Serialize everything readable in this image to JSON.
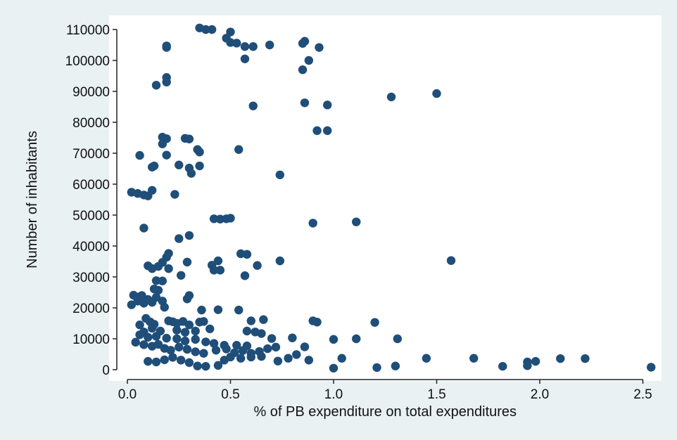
{
  "chart_data": {
    "type": "scatter",
    "title": "",
    "xlabel": "% of PB expenditure on total expenditures",
    "ylabel": "Number of inhabitants",
    "xlim": [
      0.0,
      2.6
    ],
    "ylim": [
      0,
      112000
    ],
    "x_ticks": [
      0.0,
      0.5,
      1.0,
      1.5,
      2.0,
      2.5
    ],
    "x_tick_labels": [
      "0.0",
      "0.5",
      "1.0",
      "1.5",
      "2.0",
      "2.5"
    ],
    "y_ticks": [
      0,
      10000,
      20000,
      30000,
      40000,
      50000,
      60000,
      70000,
      80000,
      90000,
      100000,
      110000
    ],
    "y_tick_labels": [
      "0",
      "10000",
      "20000",
      "30000",
      "40000",
      "50000",
      "60000",
      "70000",
      "80000",
      "90000",
      "100000",
      "110000"
    ],
    "grid": false,
    "legend": "none",
    "colors": {
      "background": "#eaf1f3",
      "plot_area": "#ffffff",
      "marker": "#1f4e79",
      "axis": "#222222"
    },
    "points": [
      [
        0.35,
        110500
      ],
      [
        0.38,
        110000
      ],
      [
        0.41,
        110000
      ],
      [
        0.5,
        109200
      ],
      [
        0.48,
        107200
      ],
      [
        0.5,
        105800
      ],
      [
        0.53,
        105600
      ],
      [
        0.57,
        104500
      ],
      [
        0.61,
        104500
      ],
      [
        0.69,
        105000
      ],
      [
        0.85,
        105500
      ],
      [
        0.86,
        106200
      ],
      [
        0.93,
        104200
      ],
      [
        0.88,
        100000
      ],
      [
        0.57,
        100500
      ],
      [
        0.19,
        104700
      ],
      [
        0.19,
        104200
      ],
      [
        0.85,
        97000
      ],
      [
        0.19,
        94500
      ],
      [
        0.19,
        93000
      ],
      [
        0.14,
        92000
      ],
      [
        1.28,
        88200
      ],
      [
        1.5,
        89300
      ],
      [
        0.86,
        86300
      ],
      [
        0.61,
        85300
      ],
      [
        0.97,
        85600
      ],
      [
        0.92,
        77300
      ],
      [
        0.97,
        77300
      ],
      [
        0.17,
        75200
      ],
      [
        0.19,
        74700
      ],
      [
        0.17,
        73000
      ],
      [
        0.28,
        74800
      ],
      [
        0.3,
        74600
      ],
      [
        0.34,
        71200
      ],
      [
        0.35,
        70400
      ],
      [
        0.54,
        71200
      ],
      [
        0.06,
        69300
      ],
      [
        0.19,
        69400
      ],
      [
        0.13,
        65900
      ],
      [
        0.12,
        65500
      ],
      [
        0.25,
        66200
      ],
      [
        0.3,
        65200
      ],
      [
        0.31,
        63500
      ],
      [
        0.35,
        65900
      ],
      [
        0.74,
        63000
      ],
      [
        0.02,
        57400
      ],
      [
        0.05,
        57000
      ],
      [
        0.08,
        56500
      ],
      [
        0.1,
        56200
      ],
      [
        0.12,
        58000
      ],
      [
        0.23,
        56700
      ],
      [
        0.42,
        48800
      ],
      [
        0.45,
        48700
      ],
      [
        0.48,
        48800
      ],
      [
        0.5,
        49000
      ],
      [
        0.9,
        47400
      ],
      [
        1.11,
        47800
      ],
      [
        0.08,
        45800
      ],
      [
        0.25,
        42400
      ],
      [
        0.3,
        43400
      ],
      [
        0.2,
        37600
      ],
      [
        0.19,
        36400
      ],
      [
        0.17,
        34700
      ],
      [
        0.1,
        33600
      ],
      [
        0.12,
        32700
      ],
      [
        0.15,
        33400
      ],
      [
        0.2,
        32700
      ],
      [
        0.29,
        34800
      ],
      [
        0.41,
        33800
      ],
      [
        0.44,
        35200
      ],
      [
        0.42,
        32200
      ],
      [
        0.45,
        32200
      ],
      [
        0.55,
        37500
      ],
      [
        0.58,
        37300
      ],
      [
        0.63,
        33700
      ],
      [
        0.57,
        30400
      ],
      [
        0.74,
        35200
      ],
      [
        1.57,
        35300
      ],
      [
        0.14,
        28800
      ],
      [
        0.17,
        28700
      ],
      [
        0.26,
        30500
      ],
      [
        0.13,
        26100
      ],
      [
        0.15,
        25700
      ],
      [
        0.03,
        24100
      ],
      [
        0.05,
        23500
      ],
      [
        0.07,
        24000
      ],
      [
        0.02,
        21000
      ],
      [
        0.05,
        22200
      ],
      [
        0.08,
        21500
      ],
      [
        0.1,
        22700
      ],
      [
        0.12,
        21800
      ],
      [
        0.14,
        23400
      ],
      [
        0.17,
        22200
      ],
      [
        0.18,
        20200
      ],
      [
        0.3,
        24000
      ],
      [
        0.29,
        22900
      ],
      [
        0.36,
        19300
      ],
      [
        0.44,
        19400
      ],
      [
        0.54,
        19300
      ],
      [
        0.09,
        16600
      ],
      [
        0.11,
        15500
      ],
      [
        0.13,
        14700
      ],
      [
        0.06,
        14500
      ],
      [
        0.2,
        15800
      ],
      [
        0.22,
        15500
      ],
      [
        0.24,
        15000
      ],
      [
        0.27,
        15600
      ],
      [
        0.3,
        14500
      ],
      [
        0.35,
        15400
      ],
      [
        0.37,
        15600
      ],
      [
        0.4,
        13200
      ],
      [
        0.33,
        12500
      ],
      [
        0.28,
        12100
      ],
      [
        0.24,
        12800
      ],
      [
        0.16,
        12500
      ],
      [
        0.12,
        13400
      ],
      [
        0.08,
        12200
      ],
      [
        0.06,
        11300
      ],
      [
        0.1,
        10500
      ],
      [
        0.14,
        10800
      ],
      [
        0.19,
        10200
      ],
      [
        0.24,
        10000
      ],
      [
        0.28,
        9300
      ],
      [
        0.33,
        9800
      ],
      [
        0.38,
        9000
      ],
      [
        0.42,
        8500
      ],
      [
        0.47,
        7900
      ],
      [
        0.53,
        7900
      ],
      [
        0.58,
        7700
      ],
      [
        0.62,
        12200
      ],
      [
        0.65,
        11700
      ],
      [
        0.6,
        15800
      ],
      [
        0.66,
        16200
      ],
      [
        0.58,
        12500
      ],
      [
        0.04,
        8900
      ],
      [
        0.08,
        8100
      ],
      [
        0.12,
        7600
      ],
      [
        0.15,
        8200
      ],
      [
        0.18,
        6900
      ],
      [
        0.21,
        6300
      ],
      [
        0.25,
        7300
      ],
      [
        0.29,
        6600
      ],
      [
        0.33,
        5800
      ],
      [
        0.37,
        5300
      ],
      [
        0.43,
        6300
      ],
      [
        0.48,
        6700
      ],
      [
        0.52,
        5500
      ],
      [
        0.56,
        6200
      ],
      [
        0.6,
        5300
      ],
      [
        0.64,
        5900
      ],
      [
        0.68,
        6800
      ],
      [
        0.72,
        7300
      ],
      [
        0.7,
        10100
      ],
      [
        0.8,
        10300
      ],
      [
        0.86,
        7400
      ],
      [
        0.9,
        15800
      ],
      [
        0.92,
        15400
      ],
      [
        1.0,
        9800
      ],
      [
        1.11,
        10000
      ],
      [
        1.2,
        15300
      ],
      [
        1.31,
        10000
      ],
      [
        0.1,
        2700
      ],
      [
        0.14,
        2500
      ],
      [
        0.18,
        3200
      ],
      [
        0.22,
        4000
      ],
      [
        0.26,
        3100
      ],
      [
        0.3,
        2300
      ],
      [
        0.34,
        1200
      ],
      [
        0.38,
        1100
      ],
      [
        0.44,
        1400
      ],
      [
        0.47,
        3100
      ],
      [
        0.5,
        4100
      ],
      [
        0.55,
        3700
      ],
      [
        0.6,
        4100
      ],
      [
        0.65,
        4300
      ],
      [
        0.73,
        2800
      ],
      [
        0.78,
        3700
      ],
      [
        0.82,
        4900
      ],
      [
        0.88,
        3100
      ],
      [
        1.0,
        500
      ],
      [
        1.04,
        3700
      ],
      [
        1.21,
        700
      ],
      [
        1.3,
        1200
      ],
      [
        1.45,
        3700
      ],
      [
        1.68,
        3700
      ],
      [
        1.82,
        1100
      ],
      [
        1.94,
        2500
      ],
      [
        1.94,
        1300
      ],
      [
        1.98,
        2700
      ],
      [
        2.1,
        3600
      ],
      [
        2.22,
        3600
      ],
      [
        2.54,
        800
      ]
    ]
  }
}
